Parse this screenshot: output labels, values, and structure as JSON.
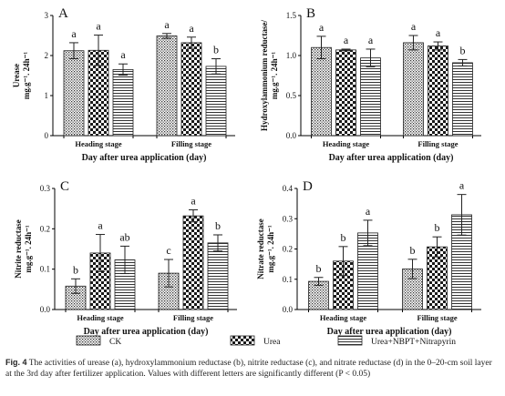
{
  "legend": [
    {
      "label": "CK",
      "pattern": "ck"
    },
    {
      "label": "Urea",
      "pattern": "urea"
    },
    {
      "label": "Urea+NBPT+Nitrapyrin",
      "pattern": "nbpt"
    }
  ],
  "caption": {
    "lead": "Fig. 4",
    "text": "  The activities of urease (a), hydroxylammonium reductase (b), nitrite reductase (c), and nitrate reductase (d) in the 0–20-cm soil layer at the 3rd day after fertilizer application. Values with different letters are significantly different (P < 0.05)"
  },
  "chart_data": [
    {
      "type": "bar",
      "panel": "A",
      "categories": [
        "Heading stage",
        "Filling stage"
      ],
      "xlabel": "Day after urea application (day)",
      "ylabel": "Urease",
      "yunit": "mg.g⁻¹. 24h⁻¹",
      "ylim": [
        0,
        3
      ],
      "yticks": [
        0,
        1,
        2,
        3
      ],
      "series": [
        {
          "name": "CK",
          "values": [
            2.12,
            2.49
          ],
          "errors": [
            0.2,
            0.06
          ],
          "letters": [
            "a",
            "a"
          ]
        },
        {
          "name": "Urea",
          "values": [
            2.13,
            2.32
          ],
          "errors": [
            0.38,
            0.14
          ],
          "letters": [
            "a",
            "a"
          ]
        },
        {
          "name": "Urea+NBPT+Nitrapyrin",
          "values": [
            1.65,
            1.73
          ],
          "errors": [
            0.14,
            0.19
          ],
          "letters": [
            "a",
            "b"
          ]
        }
      ]
    },
    {
      "type": "bar",
      "panel": "B",
      "categories": [
        "Heading stage",
        "Filling stage"
      ],
      "xlabel": "Day after urea application (day)",
      "ylabel": "Hydroxylammonium reductase/",
      "yunit": "mg.g⁻¹. 24h⁻¹",
      "ylim": [
        0,
        1.5
      ],
      "yticks": [
        0,
        0.5,
        1.0,
        1.5
      ],
      "series": [
        {
          "name": "CK",
          "values": [
            1.1,
            1.16
          ],
          "errors": [
            0.14,
            0.09
          ],
          "letters": [
            "a",
            "a"
          ]
        },
        {
          "name": "Urea",
          "values": [
            1.07,
            1.12
          ],
          "errors": [
            0.01,
            0.05
          ],
          "letters": [
            "a",
            "a"
          ]
        },
        {
          "name": "Urea+NBPT+Nitrapyrin",
          "values": [
            0.97,
            0.91
          ],
          "errors": [
            0.11,
            0.04
          ],
          "letters": [
            "a",
            "b"
          ]
        }
      ]
    },
    {
      "type": "bar",
      "panel": "C",
      "categories": [
        "Heading stage",
        "Filling stage"
      ],
      "xlabel": "Day after urea application (day)",
      "ylabel": "Nitrite reductase",
      "yunit": "mg.g⁻¹. 24h⁻¹",
      "ylim": [
        0,
        0.3
      ],
      "yticks": [
        0,
        0.1,
        0.2,
        0.3
      ],
      "series": [
        {
          "name": "CK",
          "values": [
            0.058,
            0.09
          ],
          "errors": [
            0.018,
            0.034
          ],
          "letters": [
            "b",
            "c"
          ]
        },
        {
          "name": "Urea",
          "values": [
            0.14,
            0.232
          ],
          "errors": [
            0.046,
            0.015
          ],
          "letters": [
            "a",
            "a"
          ]
        },
        {
          "name": "Urea+NBPT+Nitrapyrin",
          "values": [
            0.123,
            0.165
          ],
          "errors": [
            0.034,
            0.02
          ],
          "letters": [
            "ab",
            "b"
          ]
        }
      ]
    },
    {
      "type": "bar",
      "panel": "D",
      "categories": [
        "Heading stage",
        "Filling stage"
      ],
      "xlabel": "Day after urea application (day)",
      "ylabel": "Nitrate reductase",
      "yunit": "mg.g⁻¹. 24h⁻¹",
      "ylim": [
        0,
        0.4
      ],
      "yticks": [
        0,
        0.1,
        0.2,
        0.3,
        0.4
      ],
      "series": [
        {
          "name": "CK",
          "values": [
            0.093,
            0.134
          ],
          "errors": [
            0.013,
            0.032
          ],
          "letters": [
            "b",
            "b"
          ]
        },
        {
          "name": "Urea",
          "values": [
            0.16,
            0.207
          ],
          "errors": [
            0.048,
            0.033
          ],
          "letters": [
            "b",
            "b"
          ]
        },
        {
          "name": "Urea+NBPT+Nitrapyrin",
          "values": [
            0.253,
            0.313
          ],
          "errors": [
            0.042,
            0.067
          ],
          "letters": [
            "a",
            "a"
          ]
        }
      ]
    }
  ]
}
